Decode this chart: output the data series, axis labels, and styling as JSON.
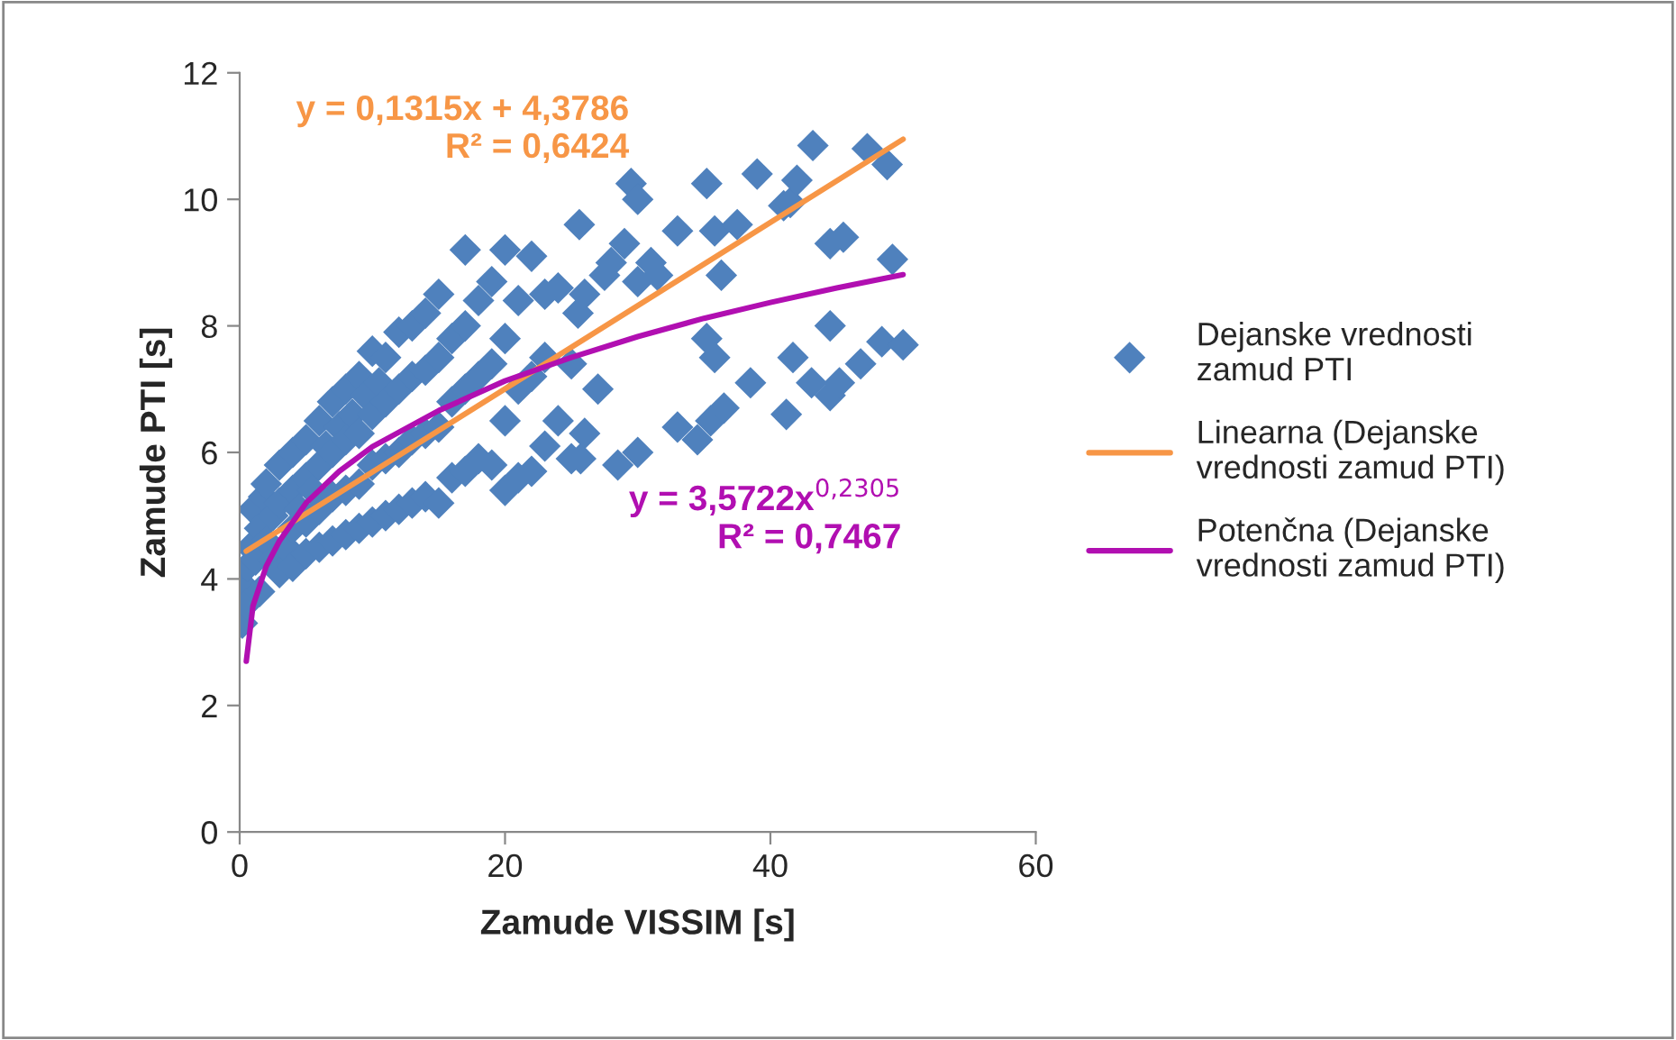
{
  "chart_data": {
    "type": "scatter",
    "xlabel": "Zamude VISSIM [s]",
    "ylabel": "Zamude PTI [s]",
    "xlim": [
      0,
      60
    ],
    "xticks": [
      0,
      20,
      40,
      60
    ],
    "ylim": [
      0,
      12
    ],
    "yticks": [
      0,
      2,
      4,
      6,
      8,
      10,
      12
    ],
    "grid": false,
    "legend": "right",
    "marker": "diamond",
    "series": [
      {
        "name": "Dejanske vrednosti\nzamud PTI",
        "color": "#4f81bd",
        "x": [
          0.2,
          0.3,
          0.5,
          0.6,
          0.8,
          1,
          1.2,
          1.5,
          1.5,
          1.8,
          2,
          2,
          2.5,
          2.5,
          3,
          3,
          3,
          3.5,
          4,
          4,
          4,
          4,
          4.5,
          5,
          5,
          5,
          5,
          5.5,
          6,
          6,
          6,
          6,
          6.5,
          7,
          7,
          7,
          7,
          7.5,
          8,
          8,
          8,
          8,
          8.5,
          9,
          9,
          9,
          9,
          9.5,
          10,
          10,
          10,
          10,
          10.5,
          11,
          11,
          11,
          11,
          12,
          12,
          12,
          12,
          13,
          13,
          13,
          13,
          14,
          14,
          14,
          14,
          15,
          15,
          15,
          15,
          16,
          16,
          16,
          17,
          17,
          17,
          17,
          18,
          18,
          18,
          19,
          19,
          19,
          20,
          20,
          20,
          20,
          21,
          21,
          21,
          22,
          22,
          22,
          23,
          23,
          23,
          24,
          24,
          25,
          25.6,
          25,
          25.5,
          26,
          26,
          27,
          25.7,
          27.5,
          28,
          28.5,
          29,
          29.5,
          30,
          30,
          30,
          31,
          31.5,
          33,
          33,
          34.5,
          35.2,
          35.2,
          35.5,
          35.8,
          35.8,
          36.3,
          36.5,
          37.5,
          38.5,
          39,
          41,
          41.2,
          41.5,
          41.7,
          42,
          43.1,
          43.2,
          44.5,
          44.5,
          44.5,
          45.2,
          45.5,
          46.8,
          47.3,
          48.4,
          48.8,
          49.2,
          50
        ],
        "values": [
          3.3,
          3.9,
          3.6,
          4.2,
          4.5,
          5.1,
          4.3,
          3.8,
          4.8,
          5.3,
          4.6,
          5.5,
          4.3,
          5.0,
          4.1,
          5.2,
          5.8,
          4.5,
          4.2,
          4.8,
          5.4,
          6.0,
          5.1,
          4.4,
          4.9,
          5.6,
          6.2,
          5.4,
          4.5,
          5.1,
          5.8,
          6.5,
          6.1,
          4.6,
          5.3,
          6.0,
          6.8,
          6.4,
          4.7,
          5.4,
          6.2,
          7.0,
          6.6,
          4.8,
          5.5,
          6.3,
          7.2,
          6.9,
          4.9,
          5.8,
          6.6,
          7.6,
          7.1,
          5.0,
          5.9,
          6.8,
          7.5,
          5.1,
          6.0,
          7.0,
          7.9,
          5.2,
          6.2,
          7.2,
          8.0,
          5.3,
          6.3,
          7.3,
          8.2,
          5.2,
          6.4,
          7.5,
          8.5,
          5.6,
          6.8,
          7.8,
          5.7,
          7.0,
          8.0,
          9.2,
          5.9,
          7.2,
          8.4,
          5.8,
          7.4,
          8.7,
          5.4,
          6.5,
          7.8,
          9.2,
          5.6,
          7.0,
          8.4,
          5.7,
          7.2,
          9.1,
          6.1,
          7.5,
          8.5,
          6.5,
          8.6,
          5.9,
          9.6,
          7.4,
          8.2,
          8.5,
          6.3,
          7.0,
          5.9,
          8.8,
          9.0,
          5.8,
          9.3,
          10.25,
          6.0,
          8.7,
          10.0,
          9.0,
          8.8,
          9.5,
          6.4,
          6.2,
          10.25,
          7.8,
          6.5,
          7.5,
          9.5,
          8.8,
          6.7,
          9.6,
          7.1,
          10.4,
          9.9,
          6.6,
          9.95,
          7.5,
          10.3,
          7.1,
          10.85,
          9.3,
          8.0,
          6.9,
          7.1,
          9.4,
          7.4,
          10.8,
          7.75,
          10.55,
          9.05,
          7.7
        ]
      },
      {
        "name": "Linearna (Dejanske\nvrednosti zamud PTI)",
        "color": "#f79646",
        "type": "line",
        "marker": "none",
        "x": [
          0.5,
          50
        ],
        "values": [
          4.44,
          10.95
        ]
      },
      {
        "name": "Potenčna (Dejanske\nvrednosti zamud PTI)",
        "color": "#b10fb1",
        "type": "line",
        "marker": "none",
        "x": [
          0.5,
          1,
          2,
          3,
          5,
          7.5,
          10,
          15,
          20,
          25,
          30,
          35,
          40,
          45,
          50
        ],
        "values": [
          2.7,
          3.57,
          4.2,
          4.6,
          5.2,
          5.7,
          6.09,
          6.66,
          7.13,
          7.5,
          7.83,
          8.12,
          8.37,
          8.6,
          8.81
        ]
      }
    ],
    "annotations": [
      "y = 0,1315x + 4,3786\nR² = 0,6424",
      "y = 3,5722x$^{0,2305}$\nR² = 0,7467"
    ]
  }
}
